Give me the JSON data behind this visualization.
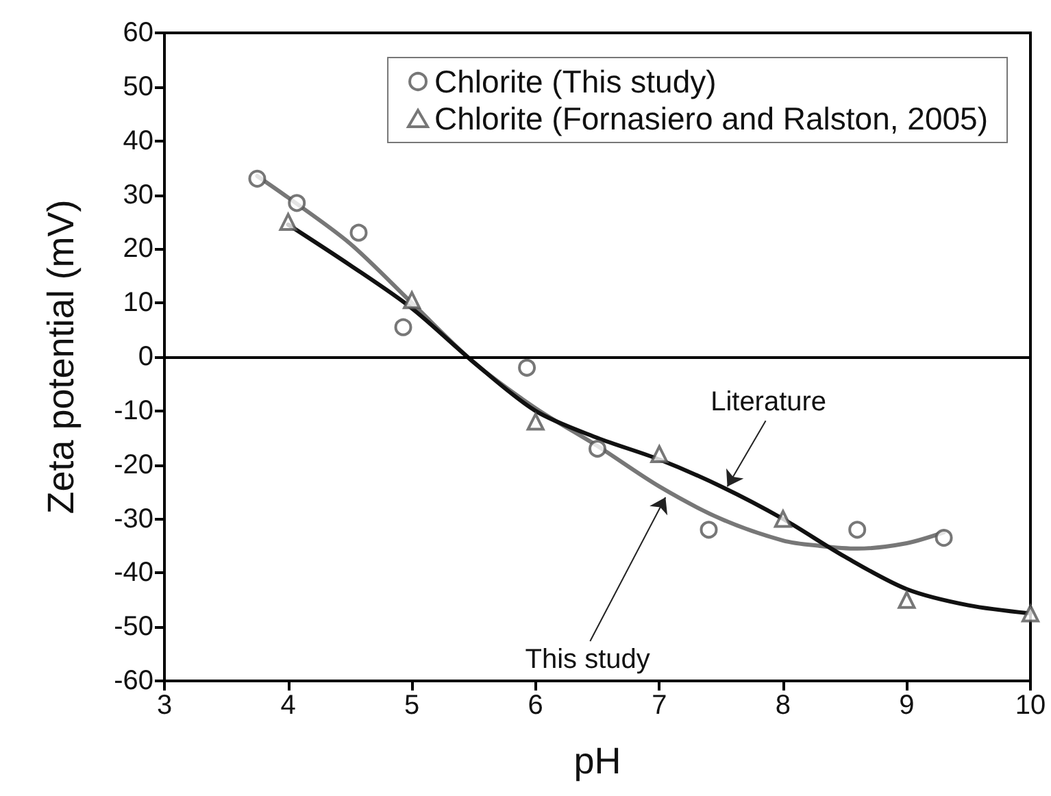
{
  "chart_data": {
    "type": "scatter",
    "xlabel": "pH",
    "ylabel": "Zeta potential (mV)",
    "xlim": [
      3,
      10
    ],
    "xticks": [
      3,
      4,
      5,
      6,
      7,
      8,
      9,
      10
    ],
    "ylim": [
      -60,
      60
    ],
    "yticks": [
      -60,
      -50,
      -40,
      -30,
      -20,
      -10,
      0,
      10,
      20,
      30,
      40,
      50,
      60
    ],
    "grid": false,
    "legend": "top right",
    "series": [
      {
        "name": "Chlorite (This study)",
        "type": "scatter",
        "marker": "circle",
        "color": "#555555",
        "x": [
          3.75,
          4.07,
          4.57,
          4.93,
          5.93,
          6.5,
          7.4,
          8.6,
          9.3
        ],
        "values": [
          33,
          28.5,
          23,
          5.5,
          -2,
          -17,
          -32,
          -32,
          -33.5
        ]
      },
      {
        "name": "Chlorite (Fornasiero and Ralston, 2005)",
        "type": "scatter",
        "marker": "triangle",
        "color": "#555555",
        "x": [
          4,
          5,
          6,
          7,
          8,
          9,
          10
        ],
        "values": [
          25,
          10.5,
          -12,
          -18,
          -30,
          -45,
          -47.5
        ]
      },
      {
        "type": "line",
        "marker": "none",
        "color": "#777777",
        "x": [
          3.75,
          4,
          4.5,
          5,
          5.5,
          6,
          6.5,
          7,
          7.5,
          8,
          8.3,
          8.6,
          9,
          9.3
        ],
        "values": [
          33.5,
          29.5,
          21,
          10,
          -1,
          -9.5,
          -16.5,
          -24,
          -30,
          -34,
          -35,
          -35.5,
          -34.5,
          -32.5
        ]
      },
      {
        "type": "line",
        "marker": "none",
        "color": "#111111",
        "x": [
          4,
          4.5,
          5,
          5.5,
          6,
          6.5,
          7,
          7.5,
          8,
          8.5,
          9,
          9.5,
          10
        ],
        "values": [
          24.5,
          17,
          9,
          -1,
          -10,
          -15,
          -19,
          -24,
          -30,
          -37,
          -43,
          -46,
          -47.5
        ]
      }
    ],
    "ref_lines": [
      {
        "axis": "y",
        "value": 0,
        "color": "#000000"
      }
    ],
    "annotations": [
      {
        "text": "Literature",
        "x": 7.55,
        "y": -24
      },
      {
        "text": "This study",
        "x": 7.05,
        "y": -26
      }
    ]
  }
}
